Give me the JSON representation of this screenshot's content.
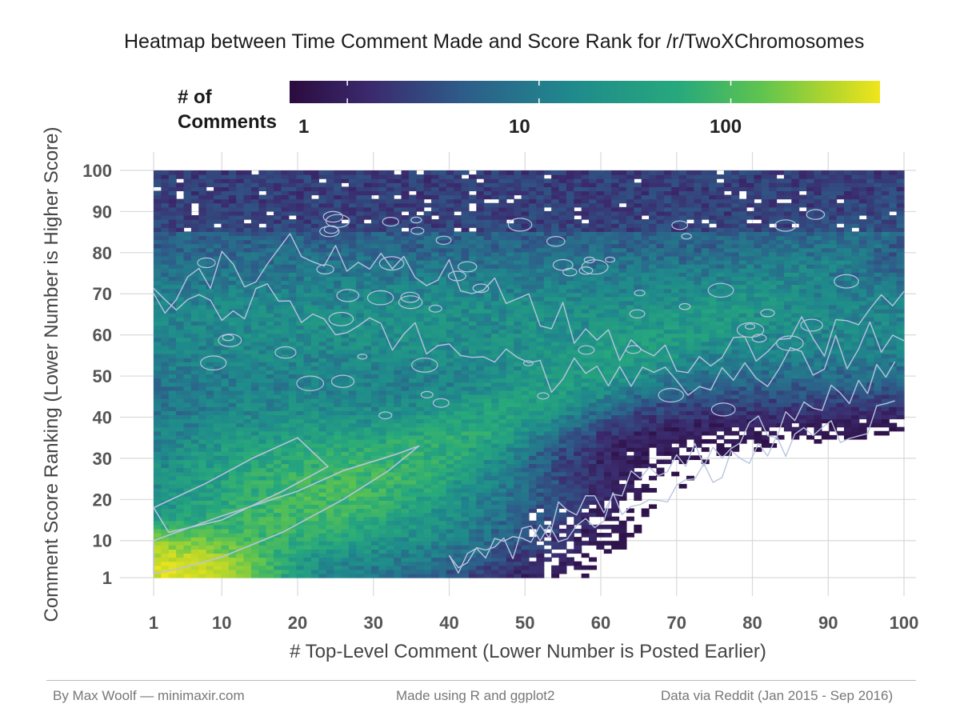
{
  "chart_data": {
    "type": "heatmap",
    "title": "Heatmap between Time Comment Made and Score Rank for /r/TwoXChromosomes",
    "xlabel": "# Top-Level Comment (Lower Number is Posted Earlier)",
    "ylabel": "Comment Score Ranking (Lower Number is Higher Score)",
    "xlim": [
      1,
      100
    ],
    "ylim": [
      1,
      100
    ],
    "x_ticks": [
      "1",
      "10",
      "20",
      "30",
      "40",
      "50",
      "60",
      "70",
      "80",
      "90",
      "100"
    ],
    "y_ticks": [
      "1",
      "10",
      "20",
      "30",
      "40",
      "50",
      "60",
      "70",
      "80",
      "90",
      "100"
    ],
    "grid": true,
    "legend": {
      "title": "# of Comments",
      "scale": "log",
      "ticks": [
        "1",
        "10",
        "100"
      ],
      "range": [
        0.5,
        600
      ],
      "placement": "top",
      "colors": [
        "#2b0b3f",
        "#3b2b6e",
        "#2d5e8a",
        "#1f8a8c",
        "#27a97c",
        "#5fc44f",
        "#b6d62b",
        "#f0e51b"
      ]
    },
    "density_model": "counts peak (~450) at x=1,y=1; high-density diagonal band from lower-left to roughly (40,35); secondary band near y=50-80 across all x; sparse (0-2) for large x with small y",
    "contour_color": "#b8c4e0"
  },
  "footer": {
    "left": "By Max Woolf — minimaxir.com",
    "center": "Made using R and ggplot2",
    "right": "Data via Reddit (Jan 2015 - Sep 2016)"
  }
}
